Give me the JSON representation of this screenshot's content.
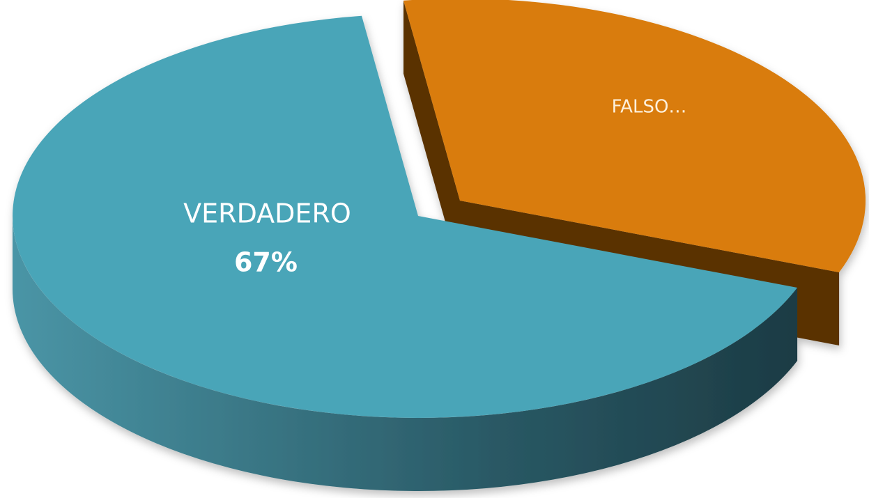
{
  "chart_data": {
    "type": "pie",
    "categories": [
      "VERDADERO",
      "FALSO…"
    ],
    "values": [
      67,
      33
    ],
    "value_labels": [
      "67%",
      null
    ],
    "colors": [
      "#4aa5b8",
      "#d97b0b"
    ],
    "three_d": true,
    "exploded": [
      false,
      true
    ]
  }
}
